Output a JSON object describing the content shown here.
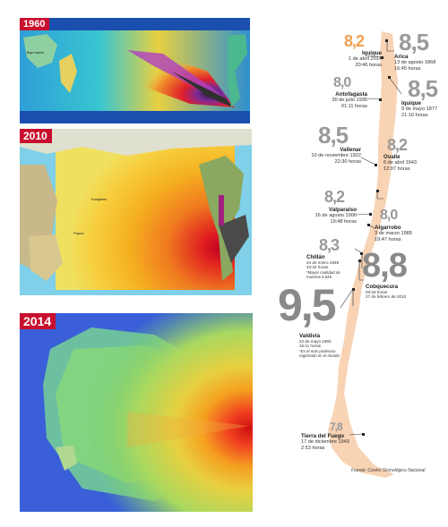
{
  "maps": [
    {
      "badge": "1960"
    },
    {
      "badge": "2010"
    },
    {
      "badge": "2014"
    }
  ],
  "chile_map": {
    "fill_color": "#f8d3b4",
    "marker_color": "#222222",
    "quakes": [
      {
        "magnitude": "8,2",
        "magnitude_color": "#f0a050",
        "name": "Iquique",
        "date": "1 de abril 2014",
        "time": "20:46 horas",
        "note": ""
      },
      {
        "magnitude": "8,5",
        "magnitude_color": "#9a9a9a",
        "name": "Arica",
        "date": "13 de agosto 1868",
        "time": "16:45 horas",
        "note": ""
      },
      {
        "magnitude": "8,0",
        "magnitude_color": "#9a9a9a",
        "name": "Antofagasta",
        "date": "30 de julio 1995",
        "time": "01:11 horas",
        "note": ""
      },
      {
        "magnitude": "8,5",
        "magnitude_color": "#9a9a9a",
        "name": "Iquique",
        "date": "9 de mayo 1877",
        "time": "21:16 horas",
        "note": ""
      },
      {
        "magnitude": "8,5",
        "magnitude_color": "#9a9a9a",
        "name": "Vallenar",
        "date": "10 de noviembre 1922",
        "time": "22:30 horas",
        "note": ""
      },
      {
        "magnitude": "8,2",
        "magnitude_color": "#9a9a9a",
        "name": "Ovalle",
        "date": "6 de abril 1943",
        "time": "12:07 horas",
        "note": ""
      },
      {
        "magnitude": "8,2",
        "magnitude_color": "#9a9a9a",
        "name": "Valparaíso",
        "date": "16 de agosto 1906",
        "time": "19:48 horas",
        "note": ""
      },
      {
        "magnitude": "8,0",
        "magnitude_color": "#9a9a9a",
        "name": "Algarrobo",
        "date": "3 de marzo 1985",
        "time": "19:47 horas",
        "note": ""
      },
      {
        "magnitude": "8,3",
        "magnitude_color": "#9a9a9a",
        "name": "Chillán",
        "date": "24 de enero 1939",
        "time": "23:32 horas",
        "note": "*Mayor cantidad de muertos 5.648"
      },
      {
        "magnitude": "8,8",
        "magnitude_color": "#8a8a8a",
        "name": "Cobquecura",
        "date": "03:34 horas",
        "time": "27 de febrero de 2010",
        "note": ""
      },
      {
        "magnitude": "9,5",
        "magnitude_color": "#8a8a8a",
        "name": "Valdivia",
        "date": "22 de mayo 1960",
        "time": "15:11 horas",
        "note": "*Es el más poderoso registrado en el mundo"
      },
      {
        "magnitude": "7,8",
        "magnitude_color": "#9a9a9a",
        "name": "Tierra del Fuego",
        "date": "17 de diciembre 1949",
        "time": "2:53 horas",
        "note": ""
      }
    ],
    "source": "Fuente: Centro Sismológico Nacional"
  }
}
